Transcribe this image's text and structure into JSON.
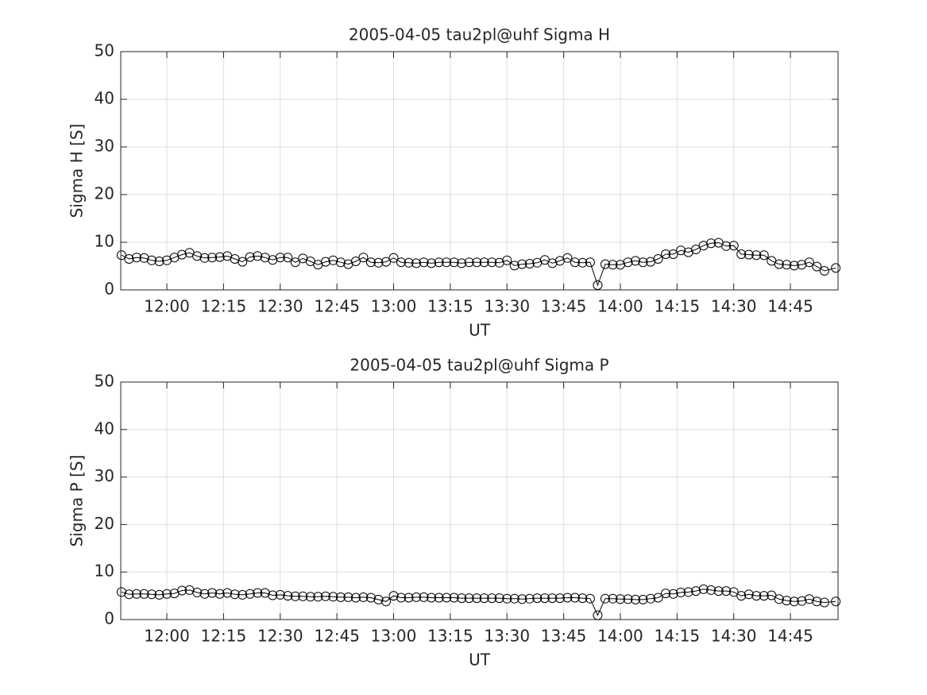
{
  "chart_data": [
    {
      "type": "line",
      "title": "2005-04-05  tau2pl@uhf Sigma H",
      "x_label": "UT",
      "y_label": "Sigma H [S]",
      "x": [
        708,
        710,
        712,
        714,
        716,
        718,
        720,
        722,
        724,
        726,
        728,
        730,
        732,
        734,
        736,
        738,
        740,
        742,
        744,
        746,
        748,
        750,
        752,
        754,
        756,
        758,
        760,
        762,
        764,
        766,
        768,
        770,
        772,
        774,
        776,
        778,
        780,
        782,
        784,
        786,
        788,
        790,
        792,
        794,
        796,
        798,
        800,
        802,
        804,
        806,
        808,
        810,
        812,
        814,
        816,
        818,
        820,
        822,
        824,
        826,
        828,
        830,
        832,
        834,
        836,
        838,
        840,
        842,
        844,
        846,
        848,
        850,
        852,
        854,
        856,
        858,
        860,
        862,
        864,
        866,
        868,
        870,
        872,
        874,
        876,
        878,
        880,
        882,
        884,
        886,
        888,
        890,
        892,
        894,
        897
      ],
      "series": [
        {
          "name": "Sigma H",
          "color": "#000000",
          "values": [
            7.3,
            6.5,
            6.8,
            6.7,
            6.2,
            6.0,
            6.2,
            6.8,
            7.4,
            7.8,
            7.1,
            6.7,
            6.8,
            6.9,
            7.1,
            6.5,
            5.9,
            6.9,
            7.1,
            6.8,
            6.3,
            6.8,
            6.8,
            5.8,
            6.6,
            6.0,
            5.3,
            5.9,
            6.2,
            5.8,
            5.4,
            6.0,
            6.8,
            5.8,
            5.7,
            5.9,
            6.7,
            5.8,
            5.7,
            5.6,
            5.8,
            5.6,
            5.8,
            5.8,
            5.8,
            5.6,
            5.8,
            5.8,
            5.8,
            5.8,
            5.7,
            6.2,
            5.1,
            5.4,
            5.5,
            5.7,
            6.3,
            5.6,
            6.1,
            6.7,
            5.8,
            5.7,
            5.8,
            1.0,
            5.4,
            5.3,
            5.3,
            5.8,
            6.1,
            5.8,
            5.9,
            6.5,
            7.5,
            7.5,
            8.3,
            7.9,
            8.5,
            9.3,
            9.8,
            9.9,
            9.2,
            9.3,
            7.5,
            7.4,
            7.3,
            7.3,
            6.1,
            5.4,
            5.3,
            5.1,
            5.3,
            5.8,
            4.9,
            4.0,
            4.6
          ]
        }
      ],
      "xlim": [
        707.8,
        897.6
      ],
      "xticks": [
        {
          "value": 720,
          "label": "12:00"
        },
        {
          "value": 735,
          "label": "12:15"
        },
        {
          "value": 750,
          "label": "12:30"
        },
        {
          "value": 765,
          "label": "12:45"
        },
        {
          "value": 780,
          "label": "13:00"
        },
        {
          "value": 795,
          "label": "13:15"
        },
        {
          "value": 810,
          "label": "13:30"
        },
        {
          "value": 825,
          "label": "13:45"
        },
        {
          "value": 840,
          "label": "14:00"
        },
        {
          "value": 855,
          "label": "14:15"
        },
        {
          "value": 870,
          "label": "14:30"
        },
        {
          "value": 885,
          "label": "14:45"
        }
      ],
      "ylim": [
        0,
        50
      ],
      "yticks": [
        0,
        10,
        20,
        30,
        40,
        50
      ],
      "grid": true
    },
    {
      "type": "line",
      "title": "2005-04-05  tau2pl@uhf Sigma P",
      "x_label": "UT",
      "y_label": "Sigma P [S]",
      "x": [
        708,
        710,
        712,
        714,
        716,
        718,
        720,
        722,
        724,
        726,
        728,
        730,
        732,
        734,
        736,
        738,
        740,
        742,
        744,
        746,
        748,
        750,
        752,
        754,
        756,
        758,
        760,
        762,
        764,
        766,
        768,
        770,
        772,
        774,
        776,
        778,
        780,
        782,
        784,
        786,
        788,
        790,
        792,
        794,
        796,
        798,
        800,
        802,
        804,
        806,
        808,
        810,
        812,
        814,
        816,
        818,
        820,
        822,
        824,
        826,
        828,
        830,
        832,
        834,
        836,
        838,
        840,
        842,
        844,
        846,
        848,
        850,
        852,
        854,
        856,
        858,
        860,
        862,
        864,
        866,
        868,
        870,
        872,
        874,
        876,
        878,
        880,
        882,
        884,
        886,
        888,
        890,
        892,
        894,
        897
      ],
      "series": [
        {
          "name": "Sigma P",
          "color": "#000000",
          "values": [
            5.8,
            5.3,
            5.4,
            5.4,
            5.3,
            5.2,
            5.4,
            5.5,
            6.1,
            6.2,
            5.7,
            5.4,
            5.6,
            5.4,
            5.6,
            5.3,
            5.2,
            5.4,
            5.6,
            5.6,
            5.1,
            5.2,
            5.0,
            4.9,
            4.9,
            4.8,
            4.8,
            4.9,
            4.8,
            4.7,
            4.7,
            4.6,
            4.7,
            4.6,
            4.2,
            3.8,
            5.0,
            4.6,
            4.6,
            4.7,
            4.7,
            4.6,
            4.6,
            4.6,
            4.6,
            4.5,
            4.5,
            4.5,
            4.5,
            4.5,
            4.5,
            4.4,
            4.4,
            4.3,
            4.4,
            4.5,
            4.5,
            4.5,
            4.5,
            4.6,
            4.6,
            4.5,
            4.4,
            0.9,
            4.4,
            4.4,
            4.3,
            4.3,
            4.2,
            4.2,
            4.4,
            4.6,
            5.5,
            5.4,
            5.7,
            5.8,
            6.0,
            6.4,
            6.2,
            6.0,
            6.0,
            5.8,
            5.0,
            5.3,
            5.0,
            5.0,
            5.1,
            4.3,
            4.0,
            3.8,
            3.9,
            4.3,
            3.8,
            3.6,
            3.8
          ]
        }
      ],
      "xlim": [
        707.8,
        897.6
      ],
      "xticks": [
        {
          "value": 720,
          "label": "12:00"
        },
        {
          "value": 735,
          "label": "12:15"
        },
        {
          "value": 750,
          "label": "12:30"
        },
        {
          "value": 765,
          "label": "12:45"
        },
        {
          "value": 780,
          "label": "13:00"
        },
        {
          "value": 795,
          "label": "13:15"
        },
        {
          "value": 810,
          "label": "13:30"
        },
        {
          "value": 825,
          "label": "13:45"
        },
        {
          "value": 840,
          "label": "14:00"
        },
        {
          "value": 855,
          "label": "14:15"
        },
        {
          "value": 870,
          "label": "14:30"
        },
        {
          "value": 885,
          "label": "14:45"
        }
      ],
      "ylim": [
        0,
        50
      ],
      "yticks": [
        0,
        10,
        20,
        30,
        40,
        50
      ],
      "grid": true
    }
  ]
}
